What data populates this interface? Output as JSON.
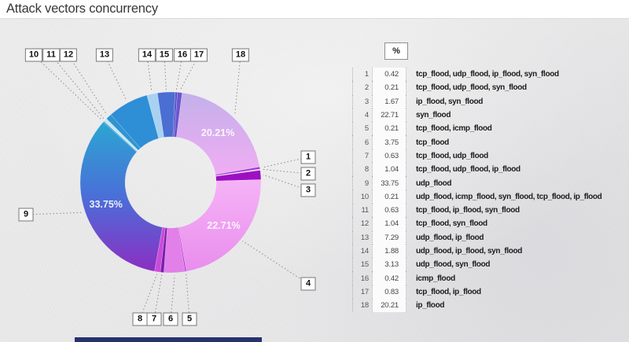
{
  "header": {
    "title": "Attack vectors concurrency"
  },
  "legend": {
    "percent_header": "%"
  },
  "chart_data": {
    "type": "pie",
    "style": "donut",
    "title": "Attack vectors concurrency",
    "rotation_deg": 80,
    "inner_radius_ratio": 0.5,
    "legend_position": "right",
    "big_label_threshold_pct": 15,
    "items": [
      {
        "index": 1,
        "pct": 0.42,
        "label": "tcp_flood, udp_flood, ip_flood, syn_flood",
        "color": "#a03ad0"
      },
      {
        "index": 2,
        "pct": 0.21,
        "label": "tcp_flood, udp_flood, syn_flood",
        "color": "#eedafa"
      },
      {
        "index": 3,
        "pct": 1.67,
        "label": "ip_flood, syn_flood",
        "color": "#9c10c2"
      },
      {
        "index": 4,
        "pct": 22.71,
        "label": "syn_flood",
        "color": [
          "#f5b3f6",
          "#e98ded"
        ]
      },
      {
        "index": 5,
        "pct": 0.21,
        "label": "tcp_flood, icmp_flood",
        "color": "#a32cc6"
      },
      {
        "index": 6,
        "pct": 3.75,
        "label": "tcp_flood",
        "color": "#e27fe8"
      },
      {
        "index": 7,
        "pct": 0.63,
        "label": "tcp_flood, udp_flood",
        "color": "#7c1fae"
      },
      {
        "index": 8,
        "pct": 1.04,
        "label": "tcp_flood, udp_flood, ip_flood",
        "color": "#cb4bd9"
      },
      {
        "index": 9,
        "pct": 33.75,
        "label": "udp_flood",
        "color": [
          "#2ba6d2",
          "#4a6fd8",
          "#8c2ec2"
        ]
      },
      {
        "index": 10,
        "pct": 0.21,
        "label": "udp_flood, icmp_flood, syn_flood, tcp_flood, ip_flood",
        "color": "#2f9fd0"
      },
      {
        "index": 11,
        "pct": 0.63,
        "label": "tcp_flood, ip_flood, syn_flood",
        "color": "#c9e7f9"
      },
      {
        "index": 12,
        "pct": 1.04,
        "label": "tcp_flood, syn_flood",
        "color": "#2f94d2"
      },
      {
        "index": 13,
        "pct": 7.29,
        "label": "udp_flood, ip_flood",
        "color": "#2e8ed6"
      },
      {
        "index": 14,
        "pct": 1.88,
        "label": "udp_flood, ip_flood, syn_flood",
        "color": "#a8d2f1"
      },
      {
        "index": 15,
        "pct": 3.13,
        "label": "udp_flood, syn_flood",
        "color": "#4a6ed2"
      },
      {
        "index": 16,
        "pct": 0.42,
        "label": "icmp_flood",
        "color": "#5a55c5"
      },
      {
        "index": 17,
        "pct": 0.83,
        "label": "tcp_flood, ip_flood",
        "color": "#6a55cf"
      },
      {
        "index": 18,
        "pct": 20.21,
        "label": "ip_flood",
        "color": [
          "#c3b0ea",
          "#f0adf3"
        ]
      }
    ]
  }
}
